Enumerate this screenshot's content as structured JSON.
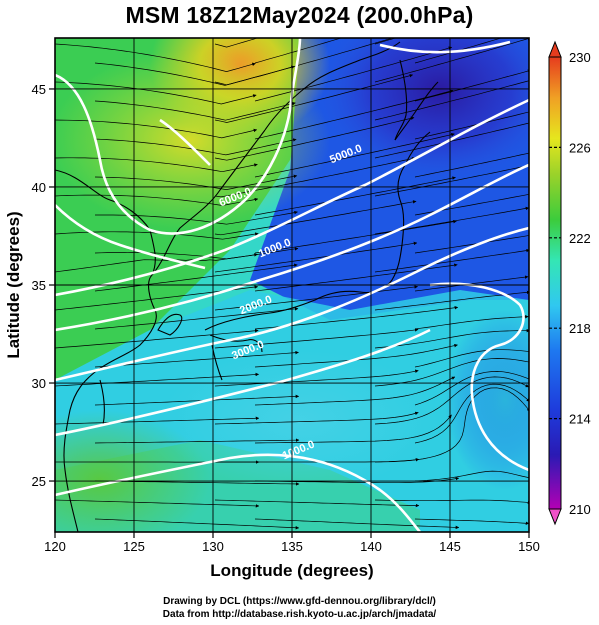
{
  "title": "MSM 18Z12May2024 (200.0hPa)",
  "credits": {
    "line1": "Drawing by DCL (https://www.gfd-dennou.org/library/dcl/)",
    "line2": "Data from http://database.rish.kyoto-u.ac.jp/arch/jmadata/"
  },
  "map": {
    "projection": "equirectangular",
    "xlabel": "Longitude (degrees)",
    "ylabel": "Latitude  (degrees)",
    "xlim": [
      120,
      150
    ],
    "ylim": [
      22.4,
      47.6
    ],
    "xticks": [
      120,
      125,
      130,
      135,
      140,
      145,
      150
    ],
    "yticks": [
      25,
      30,
      35,
      40,
      45
    ],
    "grid": true,
    "shaded_field": "temperature (K)",
    "contour_field": "wind speed",
    "streamlines": true
  },
  "colorbar": {
    "min": 210,
    "max": 230,
    "labels": [
      "230",
      "226",
      "222",
      "218",
      "214",
      "210"
    ],
    "label_values": [
      230,
      226,
      222,
      218,
      214,
      210
    ],
    "colors": [
      "#b400b4",
      "#2020c8",
      "#1e64f0",
      "#30c8f0",
      "#34e6b4",
      "#3ccc3c",
      "#9ad22a",
      "#e6e61e",
      "#f0a024",
      "#e63c1e"
    ]
  },
  "contour_labels": [
    {
      "text": "5000.0",
      "lon": 137.5,
      "lat": 41.2
    },
    {
      "text": "1000.0",
      "lon": 133.0,
      "lat": 36.4
    },
    {
      "text": "2000.0",
      "lon": 131.8,
      "lat": 33.5
    },
    {
      "text": "3000.0",
      "lon": 131.3,
      "lat": 31.2
    },
    {
      "text": "1000.0",
      "lon": 134.5,
      "lat": 26.1
    },
    {
      "text": "6000.0",
      "lon": 130.5,
      "lat": 39.0
    }
  ]
}
